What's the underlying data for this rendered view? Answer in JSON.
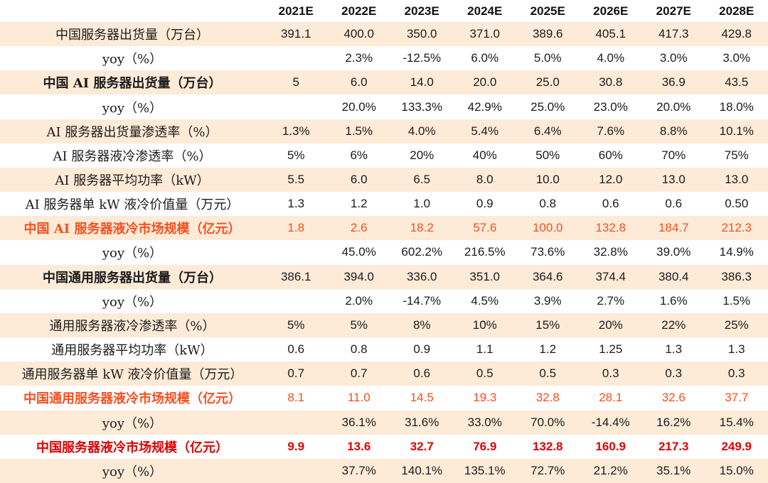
{
  "colors": {
    "stripe_background": "#fdebd8",
    "orange_accent": "#fa4e1d",
    "red_accent": "#e00000",
    "text": "#1b1b1b"
  },
  "chart_data": {
    "type": "table",
    "columns": [
      "2021E",
      "2022E",
      "2023E",
      "2024E",
      "2025E",
      "2026E",
      "2027E",
      "2028E"
    ],
    "rows": [
      {
        "label": "中国服务器出货量（万台）",
        "style": "normal",
        "values": [
          "391.1",
          "400.0",
          "350.0",
          "371.0",
          "389.6",
          "405.1",
          "417.3",
          "429.8"
        ]
      },
      {
        "label": "yoy（%）",
        "style": "normal",
        "values": [
          "",
          "2.3%",
          "-12.5%",
          "6.0%",
          "5.0%",
          "4.0%",
          "3.0%",
          "3.0%"
        ]
      },
      {
        "label": "中国 AI 服务器出货量（万台）",
        "style": "bold",
        "values": [
          "5",
          "6.0",
          "14.0",
          "20.0",
          "25.0",
          "30.8",
          "36.9",
          "43.5"
        ]
      },
      {
        "label": "yoy（%）",
        "style": "normal",
        "values": [
          "",
          "20.0%",
          "133.3%",
          "42.9%",
          "25.0%",
          "23.0%",
          "20.0%",
          "18.0%"
        ]
      },
      {
        "label": "AI 服务器出货量渗透率（%）",
        "style": "normal",
        "values": [
          "1.3%",
          "1.5%",
          "4.0%",
          "5.4%",
          "6.4%",
          "7.6%",
          "8.8%",
          "10.1%"
        ]
      },
      {
        "label": "AI 服务器液冷渗透率（%）",
        "style": "normal",
        "values": [
          "5%",
          "6%",
          "20%",
          "40%",
          "50%",
          "60%",
          "70%",
          "75%"
        ]
      },
      {
        "label": "AI 服务器平均功率（kW）",
        "style": "normal",
        "values": [
          "5.5",
          "6.0",
          "6.5",
          "8.0",
          "10.0",
          "12.0",
          "13.0",
          "13.0"
        ]
      },
      {
        "label": "AI 服务器单 kW 液冷价值量（万元）",
        "style": "normal",
        "values": [
          "1.3",
          "1.2",
          "1.0",
          "0.9",
          "0.8",
          "0.6",
          "0.6",
          "0.50"
        ]
      },
      {
        "label": "中国 AI 服务器液冷市场规模（亿元）",
        "style": "orange",
        "values": [
          "1.8",
          "2.6",
          "18.2",
          "57.6",
          "100.0",
          "132.8",
          "184.7",
          "212.3"
        ]
      },
      {
        "label": "yoy（%）",
        "style": "normal",
        "values": [
          "",
          "45.0%",
          "602.2%",
          "216.5%",
          "73.6%",
          "32.8%",
          "39.0%",
          "14.9%"
        ]
      },
      {
        "label": "中国通用服务器出货量（万台）",
        "style": "bold",
        "values": [
          "386.1",
          "394.0",
          "336.0",
          "351.0",
          "364.6",
          "374.4",
          "380.4",
          "386.3"
        ]
      },
      {
        "label": "yoy（%）",
        "style": "normal",
        "values": [
          "",
          "2.0%",
          "-14.7%",
          "4.5%",
          "3.9%",
          "2.7%",
          "1.6%",
          "1.5%"
        ]
      },
      {
        "label": "通用服务器液冷渗透率（%）",
        "style": "normal",
        "values": [
          "5%",
          "5%",
          "8%",
          "10%",
          "15%",
          "20%",
          "22%",
          "25%"
        ]
      },
      {
        "label": "通用服务器平均功率（kW）",
        "style": "normal",
        "values": [
          "0.6",
          "0.8",
          "0.9",
          "1.1",
          "1.2",
          "1.25",
          "1.3",
          "1.3"
        ]
      },
      {
        "label": "通用服务器单 kW 液冷价值量（万元）",
        "style": "normal",
        "values": [
          "0.7",
          "0.7",
          "0.6",
          "0.5",
          "0.5",
          "0.3",
          "0.3",
          "0.3"
        ]
      },
      {
        "label": "中国通用服务器液冷市场规模（亿元）",
        "style": "orange",
        "values": [
          "8.1",
          "11.0",
          "14.5",
          "19.3",
          "32.8",
          "28.1",
          "32.6",
          "37.7"
        ]
      },
      {
        "label": "yoy（%）",
        "style": "normal",
        "values": [
          "",
          "36.1%",
          "31.6%",
          "33.0%",
          "70.0%",
          "-14.4%",
          "16.2%",
          "15.4%"
        ]
      },
      {
        "label": "中国服务器液冷市场规模（亿元）",
        "style": "red",
        "values": [
          "9.9",
          "13.6",
          "32.7",
          "76.9",
          "132.8",
          "160.9",
          "217.3",
          "249.9"
        ]
      },
      {
        "label": "yoy（%）",
        "style": "normal",
        "values": [
          "",
          "37.7%",
          "140.1%",
          "135.1%",
          "72.7%",
          "21.2%",
          "35.1%",
          "15.0%"
        ]
      }
    ]
  }
}
